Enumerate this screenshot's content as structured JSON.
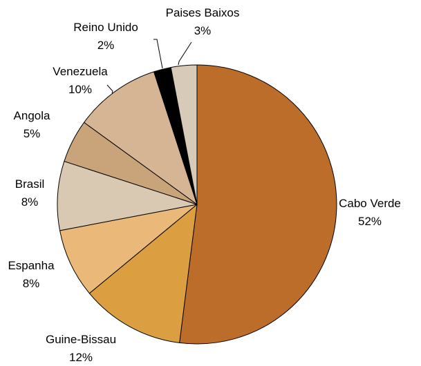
{
  "chart_data": {
    "type": "pie",
    "title": "",
    "start_angle_deg": 0,
    "direction": "clockwise",
    "slices": [
      {
        "label": "Cabo Verde",
        "value": 52,
        "display": "52%",
        "color": "#BD6D2A"
      },
      {
        "label": "Guine-Bissau",
        "value": 12,
        "display": "12%",
        "color": "#DB9F41"
      },
      {
        "label": "Espanha",
        "value": 8,
        "display": "8%",
        "color": "#EAB878"
      },
      {
        "label": "Brasil",
        "value": 8,
        "display": "8%",
        "color": "#D9C9B2"
      },
      {
        "label": "Angola",
        "value": 5,
        "display": "5%",
        "color": "#C9A37A"
      },
      {
        "label": "Venezuela",
        "value": 10,
        "display": "10%",
        "color": "#D6B594"
      },
      {
        "label": "Reino Unido",
        "value": 2,
        "display": "2%",
        "color": "#000000"
      },
      {
        "label": "Paises Baixos",
        "value": 3,
        "display": "3%",
        "color": "#D8CAB9"
      }
    ],
    "stroke_color": "#000000"
  }
}
